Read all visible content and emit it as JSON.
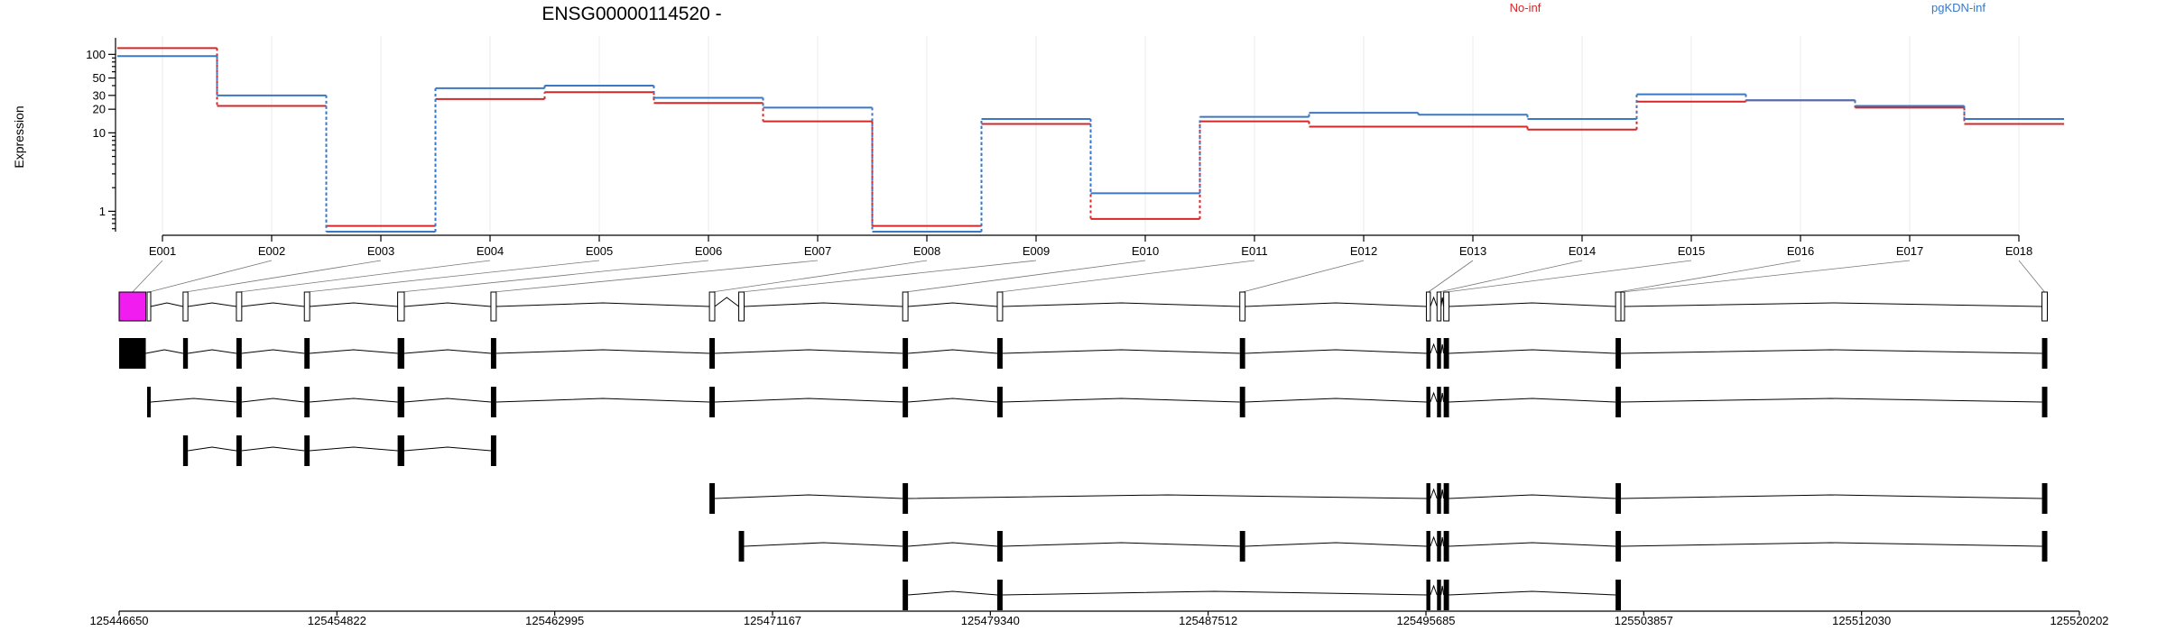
{
  "chart_data": {
    "type": "line",
    "title": "ENSG00000114520 -",
    "ylabel": "Expression",
    "yscale": "log",
    "ylim": [
      0.55,
      150
    ],
    "y_ticks": [
      1,
      10,
      20,
      30,
      50,
      100
    ],
    "y_tick_labels": [
      "1",
      "10",
      "20",
      "30",
      "50",
      "100"
    ],
    "grid": "vertical at each exon",
    "legend_placement": "top",
    "categories": [
      "E001",
      "E002",
      "E003",
      "E004",
      "E005",
      "E006",
      "E007",
      "E008",
      "E009",
      "E010",
      "E011",
      "E012",
      "E013",
      "E014",
      "E015",
      "E016",
      "E017",
      "E018"
    ],
    "series": [
      {
        "name": "No-inf",
        "color": "#d62728",
        "values": [
          120,
          22,
          0.65,
          27,
          33,
          24,
          14,
          0.65,
          13,
          0.8,
          14,
          12,
          12,
          11,
          25,
          26,
          21,
          13
        ]
      },
      {
        "name": "pgKDN-inf",
        "color": "#3b78c4",
        "values": [
          95,
          30,
          0.55,
          37,
          40,
          28,
          21,
          0.55,
          15,
          1.7,
          16,
          18,
          17,
          15,
          31,
          26,
          22,
          15
        ]
      }
    ],
    "gene_model": {
      "coordinate_ticks": [
        "125446650",
        "125454822",
        "125462995",
        "125471167",
        "125479340",
        "125487512",
        "125495685",
        "125503857",
        "125512030",
        "125520202"
      ],
      "coord_range": [
        125446650,
        125520202
      ],
      "exons": [
        [
          125446650,
          125447650
        ],
        [
          125447700,
          125447820
        ],
        [
          125449050,
          125449230
        ],
        [
          125451050,
          125451250
        ],
        [
          125453600,
          125453800
        ],
        [
          125457100,
          125457350
        ],
        [
          125460600,
          125460800
        ],
        [
          125468800,
          125469000
        ],
        [
          125469900,
          125470100
        ],
        [
          125476050,
          125476250
        ],
        [
          125479600,
          125479800
        ],
        [
          125488700,
          125488900
        ],
        [
          125495700,
          125495850
        ],
        [
          125496100,
          125496250
        ],
        [
          125496350,
          125496550
        ],
        [
          125502800,
          125503000
        ],
        [
          125503000,
          125503100
        ],
        [
          125518800,
          125519000
        ]
      ],
      "highlighted_exon": "E001",
      "highlight_color": "#f01cf0",
      "transcripts": [
        [
          [
            125446650,
            125447650
          ],
          [
            125449050,
            125449230
          ],
          [
            125451050,
            125451250
          ],
          [
            125453600,
            125453800
          ],
          [
            125457100,
            125457350
          ],
          [
            125460600,
            125460800
          ],
          [
            125468800,
            125469000
          ],
          [
            125476050,
            125476250
          ],
          [
            125479600,
            125479800
          ],
          [
            125488700,
            125488900
          ],
          [
            125495700,
            125495850
          ],
          [
            125496100,
            125496250
          ],
          [
            125496350,
            125496550
          ],
          [
            125502800,
            125503000
          ],
          [
            125518800,
            125519000
          ]
        ],
        [
          [
            125447700,
            125447820
          ],
          [
            125451050,
            125451250
          ],
          [
            125453600,
            125453800
          ],
          [
            125457100,
            125457350
          ],
          [
            125460600,
            125460800
          ],
          [
            125468800,
            125469000
          ],
          [
            125476050,
            125476250
          ],
          [
            125479600,
            125479800
          ],
          [
            125488700,
            125488900
          ],
          [
            125495700,
            125495850
          ],
          [
            125496100,
            125496250
          ],
          [
            125496350,
            125496550
          ],
          [
            125502800,
            125503000
          ],
          [
            125518800,
            125519000
          ]
        ],
        [
          [
            125449050,
            125449230
          ],
          [
            125451050,
            125451250
          ],
          [
            125453600,
            125453800
          ],
          [
            125457100,
            125457350
          ],
          [
            125460600,
            125460800
          ]
        ],
        [
          [
            125468800,
            125469000
          ],
          [
            125476050,
            125476250
          ],
          [
            125495700,
            125495850
          ],
          [
            125496100,
            125496250
          ],
          [
            125496350,
            125496550
          ],
          [
            125502800,
            125503000
          ],
          [
            125518800,
            125519000
          ]
        ],
        [
          [
            125469900,
            125470100
          ],
          [
            125476050,
            125476250
          ],
          [
            125479600,
            125479800
          ],
          [
            125488700,
            125488900
          ],
          [
            125495700,
            125495850
          ],
          [
            125496100,
            125496250
          ],
          [
            125496350,
            125496550
          ],
          [
            125502800,
            125503000
          ],
          [
            125518800,
            125519000
          ]
        ],
        [
          [
            125476050,
            125476250
          ],
          [
            125479600,
            125479800
          ],
          [
            125495700,
            125495850
          ],
          [
            125496100,
            125496250
          ],
          [
            125496350,
            125496550
          ],
          [
            125502800,
            125503000
          ]
        ]
      ]
    }
  }
}
